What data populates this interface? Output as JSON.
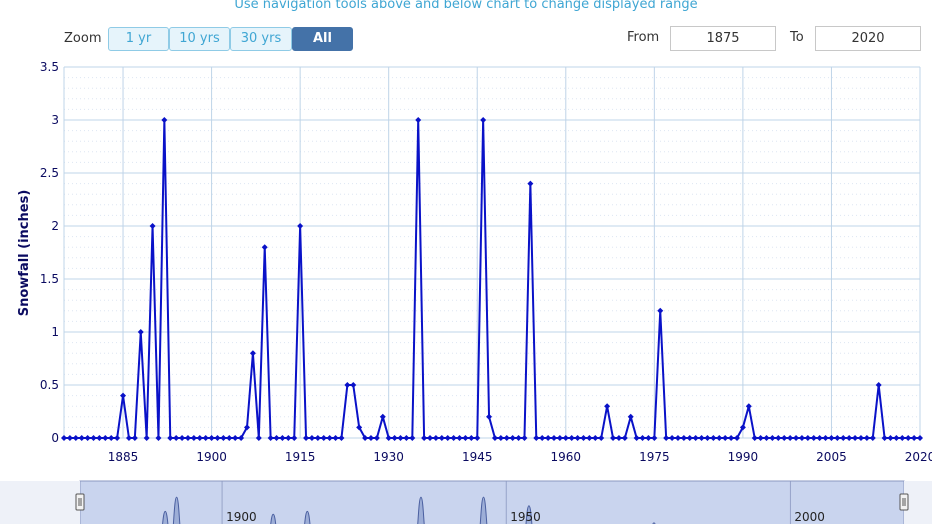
{
  "header": {
    "subtitle": "Use navigation tools above and below chart to change displayed range"
  },
  "zoom": {
    "label": "Zoom",
    "buttons": [
      "1 yr",
      "10 yrs",
      "30 yrs",
      "All"
    ],
    "active": "All"
  },
  "range": {
    "from_label": "From",
    "from_value": "1875",
    "to_label": "To",
    "to_value": "2020"
  },
  "colors": {
    "series": "#0a12c8",
    "grid": "#bfd4e8",
    "axis_text": "#0a0a60",
    "navigator_fill": "#c9d4ee",
    "navigator_line": "#4a5fa0"
  },
  "chart_data": {
    "type": "line",
    "ylabel": "Snowfall (inches)",
    "xlim": [
      1875,
      2020
    ],
    "ylim": [
      0,
      3.5
    ],
    "x_ticks": [
      1885,
      1900,
      1915,
      1930,
      1945,
      1960,
      1975,
      1990,
      2005,
      2020
    ],
    "y_ticks": [
      0,
      0.5,
      1,
      1.5,
      2,
      2.5,
      3,
      3.5
    ],
    "y_tick_labels": [
      "0",
      "0.5",
      "1",
      "1.5",
      "2",
      "2.5",
      "3",
      "3.5"
    ],
    "grid": true,
    "x": [
      1875,
      1876,
      1877,
      1878,
      1879,
      1880,
      1881,
      1882,
      1883,
      1884,
      1885,
      1886,
      1887,
      1888,
      1889,
      1890,
      1891,
      1892,
      1893,
      1894,
      1895,
      1896,
      1897,
      1898,
      1899,
      1900,
      1901,
      1902,
      1903,
      1904,
      1905,
      1906,
      1907,
      1908,
      1909,
      1910,
      1911,
      1912,
      1913,
      1914,
      1915,
      1916,
      1917,
      1918,
      1919,
      1920,
      1921,
      1922,
      1923,
      1924,
      1925,
      1926,
      1927,
      1928,
      1929,
      1930,
      1931,
      1932,
      1933,
      1934,
      1935,
      1936,
      1937,
      1938,
      1939,
      1940,
      1941,
      1942,
      1943,
      1944,
      1945,
      1946,
      1947,
      1948,
      1949,
      1950,
      1951,
      1952,
      1953,
      1954,
      1955,
      1956,
      1957,
      1958,
      1959,
      1960,
      1961,
      1962,
      1963,
      1964,
      1965,
      1966,
      1967,
      1968,
      1969,
      1970,
      1971,
      1972,
      1973,
      1974,
      1975,
      1976,
      1977,
      1978,
      1979,
      1980,
      1981,
      1982,
      1983,
      1984,
      1985,
      1986,
      1987,
      1988,
      1989,
      1990,
      1991,
      1992,
      1993,
      1994,
      1995,
      1996,
      1997,
      1998,
      1999,
      2000,
      2001,
      2002,
      2003,
      2004,
      2005,
      2006,
      2007,
      2008,
      2009,
      2010,
      2011,
      2012,
      2013,
      2014,
      2015,
      2016,
      2017,
      2018,
      2019,
      2020
    ],
    "series": [
      {
        "values": [
          0,
          0,
          0,
          0,
          0,
          0,
          0,
          0,
          0,
          0,
          0.4,
          0,
          0,
          1,
          0,
          2,
          0,
          3,
          0,
          0,
          0,
          0,
          0,
          0,
          0,
          0,
          0,
          0,
          0,
          0,
          0,
          0.1,
          0.8,
          0,
          1.8,
          0,
          0,
          0,
          0,
          0,
          2,
          0,
          0,
          0,
          0,
          0,
          0,
          0,
          0.5,
          0.5,
          0.1,
          0,
          0,
          0,
          0.2,
          0,
          0,
          0,
          0,
          0,
          3,
          0,
          0,
          0,
          0,
          0,
          0,
          0,
          0,
          0,
          0,
          3,
          0.2,
          0,
          0,
          0,
          0,
          0,
          0,
          2.4,
          0,
          0,
          0,
          0,
          0,
          0,
          0,
          0,
          0,
          0,
          0,
          0,
          0.3,
          0,
          0,
          0,
          0.2,
          0,
          0,
          0,
          0,
          1.2,
          0,
          0,
          0,
          0,
          0,
          0,
          0,
          0,
          0,
          0,
          0,
          0,
          0,
          0.1,
          0.3,
          0,
          0,
          0,
          0,
          0,
          0,
          0,
          0,
          0,
          0,
          0,
          0,
          0,
          0,
          0,
          0,
          0,
          0,
          0,
          0,
          0,
          0.5,
          0,
          0,
          0,
          0,
          0,
          0,
          0
        ]
      }
    ],
    "navigator": {
      "x_tick_labels": [
        "1900",
        "1950",
        "2000"
      ]
    }
  }
}
